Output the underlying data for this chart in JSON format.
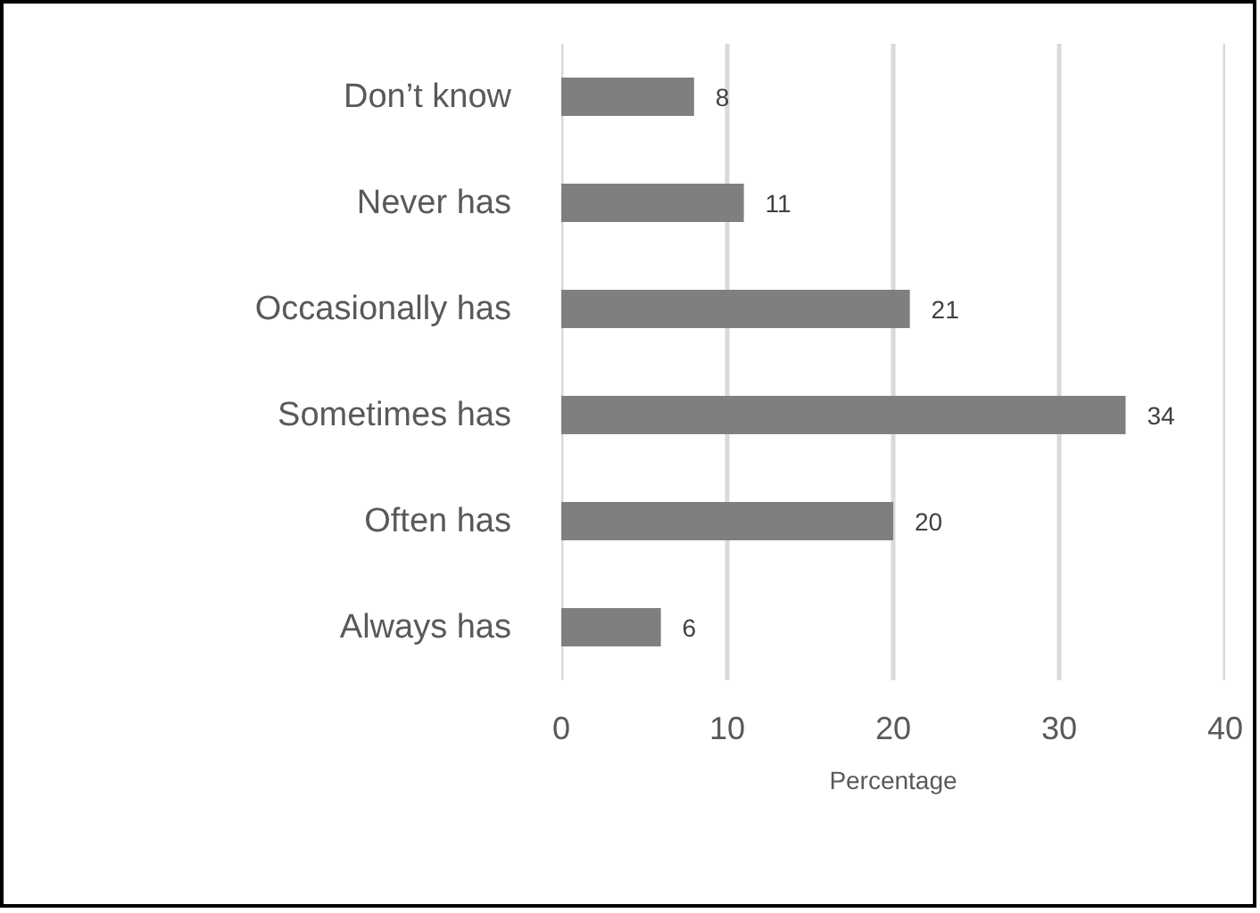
{
  "chart_data": {
    "type": "bar",
    "orientation": "horizontal",
    "categories": [
      "Don’t know",
      "Never has",
      "Occasionally has",
      "Sometimes has",
      "Often has",
      "Always has"
    ],
    "values": [
      8,
      11,
      21,
      34,
      20,
      6
    ],
    "color": "#7f7f7f",
    "xlim": [
      0,
      40
    ],
    "xticks": [
      0,
      10,
      20,
      30,
      40
    ],
    "xlabel": "Percentage",
    "data_labels": true,
    "grid": "x"
  }
}
